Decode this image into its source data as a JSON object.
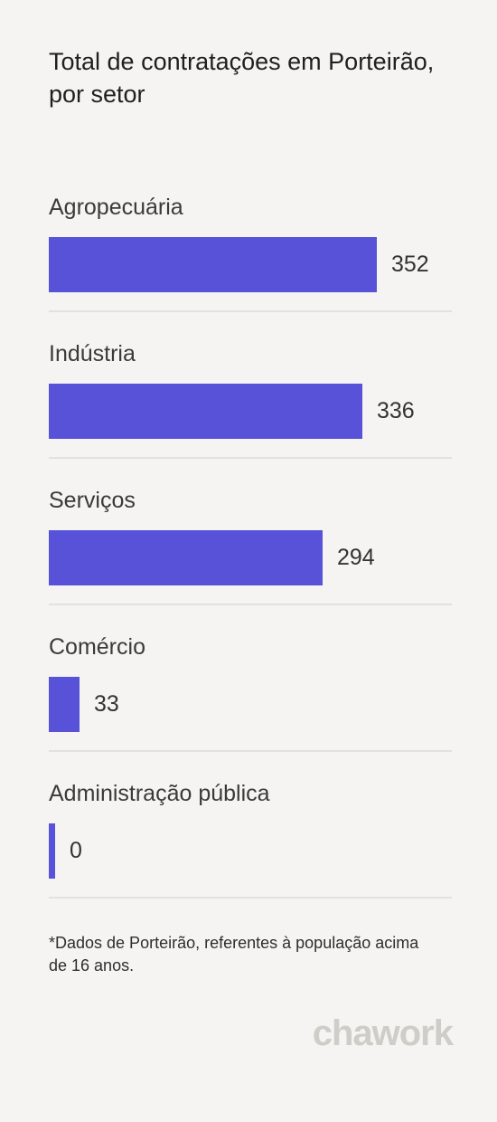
{
  "title": "Total de contratações em Porteirão, por setor",
  "footnote": "*Dados de Porteirão, referentes à população acima de 16 anos.",
  "logo_text": "chawork",
  "colors": {
    "bar": "#5752d8",
    "background": "#f5f4f2",
    "divider": "#e2e1de"
  },
  "chart_data": {
    "type": "bar",
    "orientation": "horizontal",
    "title": "Total de contratações em Porteirão, por setor",
    "categories": [
      "Agropecuária",
      "Indústria",
      "Serviços",
      "Comércio",
      "Administração pública"
    ],
    "values": [
      352,
      336,
      294,
      33,
      0
    ],
    "value_labels": [
      "352",
      "336",
      "294",
      "33",
      "0"
    ],
    "xlim": [
      0,
      352
    ],
    "grid": false,
    "legend": "none"
  }
}
